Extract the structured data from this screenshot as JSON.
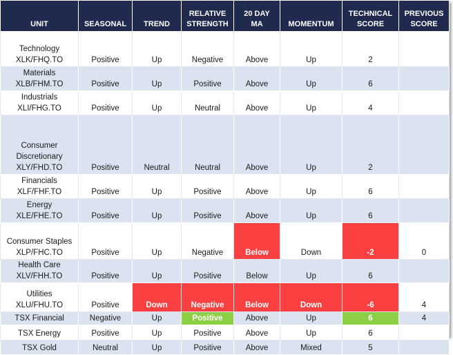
{
  "headers": [
    "UNIT",
    "SEASONAL",
    "TREND",
    "RELATIVE STRENGTH",
    "20 DAY MA",
    "MOMENTUM",
    "TECHNICAL SCORE",
    "PREVIOUS SCORE"
  ],
  "header_lines": [
    [
      "UNIT"
    ],
    [
      "SEASONAL"
    ],
    [
      "TREND"
    ],
    [
      "RELATIVE",
      "STRENGTH"
    ],
    [
      "20 DAY",
      "MA"
    ],
    [
      "MOMENTUM"
    ],
    [
      "TECHNICAL",
      "SCORE"
    ],
    [
      "PREVIOUS",
      "SCORE"
    ]
  ],
  "colors": {
    "header_bg": "#1f2a4e",
    "stripe": "#dce3f0",
    "negative_highlight": "#fa4040",
    "positive_highlight": "#8ccf45"
  },
  "rows": [
    {
      "unit": [
        "Technology",
        "XLK/FHQ.TO"
      ],
      "seasonal": "Positive",
      "trend": "Up",
      "rs": "Negative",
      "ma": "Above",
      "momentum": "Up",
      "score": "2",
      "previous": ""
    },
    {
      "unit": [
        "Materials",
        "XLB/FHM.TO"
      ],
      "seasonal": "Positive",
      "trend": "Up",
      "rs": "Positive",
      "ma": "Above",
      "momentum": "Up",
      "score": "6",
      "previous": ""
    },
    {
      "unit": [
        "Industrials",
        "XLI/FHG.TO"
      ],
      "seasonal": "Positive",
      "trend": "Up",
      "rs": "Neutral",
      "ma": "Above",
      "momentum": "Up",
      "score": "4",
      "previous": ""
    },
    {
      "unit": [
        "Consumer",
        "Discretionary",
        "XLY/FHD.TO"
      ],
      "seasonal": "Positive",
      "trend": "Neutral",
      "rs": "Neutral",
      "ma": "Above",
      "momentum": "Up",
      "score": "2",
      "previous": ""
    },
    {
      "unit": [
        "Financials",
        "XLF/FHF.TO"
      ],
      "seasonal": "Positive",
      "trend": "Up",
      "rs": "Positive",
      "ma": "Above",
      "momentum": "Up",
      "score": "6",
      "previous": ""
    },
    {
      "unit": [
        "Energy",
        "XLE/FHE.TO"
      ],
      "seasonal": "Positive",
      "trend": "Up",
      "rs": "Positive",
      "ma": "Above",
      "momentum": "Up",
      "score": "6",
      "previous": ""
    },
    {
      "unit": [
        "Consumer Staples",
        "XLP/FHC.TO"
      ],
      "seasonal": "Positive",
      "trend": "Up",
      "rs": "Negative",
      "ma": "Below",
      "momentum": "Down",
      "score": "-2",
      "previous": "0"
    },
    {
      "unit": [
        "Health Care",
        "XLV/FHH.TO"
      ],
      "seasonal": "Positive",
      "trend": "Up",
      "rs": "Positive",
      "ma": "Below",
      "momentum": "Up",
      "score": "6",
      "previous": ""
    },
    {
      "unit": [
        "Utilities",
        "XLU/FHU.TO"
      ],
      "seasonal": "Positive",
      "trend": "Down",
      "rs": "Negative",
      "ma": "Below",
      "momentum": "Down",
      "score": "-6",
      "previous": "4"
    },
    {
      "unit": [
        "TSX Financial"
      ],
      "seasonal": "Negative",
      "trend": "Up",
      "rs": "Positive",
      "ma": "Above",
      "momentum": "Up",
      "score": "6",
      "previous": "4"
    },
    {
      "unit": [
        "TSX Energy"
      ],
      "seasonal": "Positive",
      "trend": "Up",
      "rs": "Positive",
      "ma": "Above",
      "momentum": "Up",
      "score": "6",
      "previous": ""
    },
    {
      "unit": [
        "TSX Gold"
      ],
      "seasonal": "Neutral",
      "trend": "Up",
      "rs": "Positive",
      "ma": "Above",
      "momentum": "Mixed",
      "score": "5",
      "previous": ""
    }
  ]
}
